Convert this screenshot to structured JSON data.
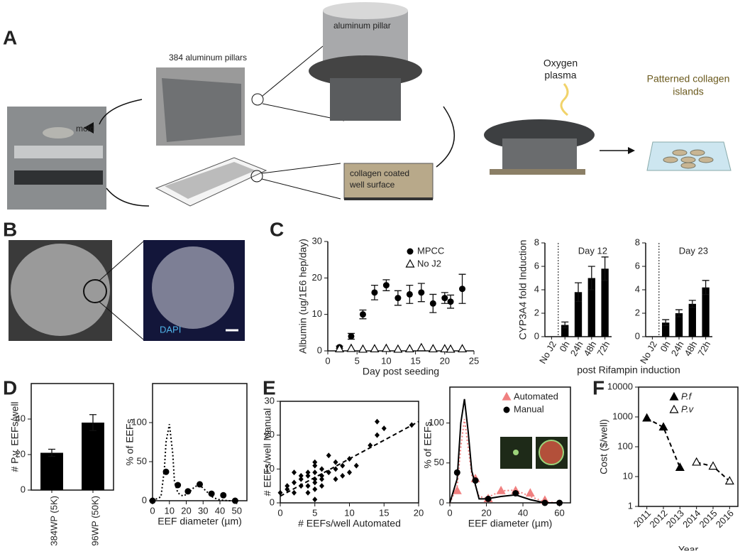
{
  "figure": {
    "panel_letters": [
      "A",
      "B",
      "C",
      "D",
      "E",
      "F"
    ],
    "a_labels": {
      "pillars": "384 aluminum pillars",
      "mold": "mold",
      "pillar": "aluminum pillar",
      "well": [
        "collagen coated",
        "well surface"
      ],
      "plasma": [
        "Oxygen",
        "plasma"
      ],
      "islands": [
        "Patterned collagen",
        "islands"
      ]
    },
    "b_labels": {
      "stain": "DAPI"
    }
  },
  "chart_data": [
    {
      "type": "scatter",
      "xlabel": "Day post seeding",
      "ylabel": "Albumin (ug/1E6 hep/day)",
      "xlim": [
        0,
        25
      ],
      "xticks": [
        0,
        5,
        10,
        15,
        20,
        25
      ],
      "ylim": [
        0,
        30
      ],
      "yticks": [
        0,
        10,
        20,
        30
      ],
      "legend": "top-right",
      "series": [
        {
          "name": "MPCC",
          "color": "#000000",
          "marker": "circle",
          "x": [
            2,
            4,
            6,
            8,
            10,
            12,
            14,
            16,
            18,
            20,
            21,
            23
          ],
          "values": [
            1,
            4,
            10,
            16,
            18,
            14.5,
            15.5,
            16,
            13,
            14.5,
            13.5,
            17
          ],
          "errors": [
            0.3,
            0.8,
            1.2,
            2,
            1.5,
            2,
            2.5,
            2.5,
            2.5,
            1.5,
            1.8,
            4
          ]
        },
        {
          "name": "No J2",
          "color": "#000000",
          "marker": "triangle-open",
          "x": [
            2,
            4,
            6,
            8,
            10,
            12,
            14,
            16,
            18,
            20,
            21,
            23
          ],
          "values": [
            0.5,
            0.6,
            0.4,
            0.5,
            0.6,
            0.4,
            0.5,
            0.8,
            0.5,
            0.5,
            0.4,
            0.5
          ]
        }
      ]
    },
    {
      "type": "bar",
      "ylabel": "CYP3A4 fold Induction",
      "annotation": "Day 12",
      "color": "#000000",
      "categories": [
        "No J2",
        "0h",
        "24h",
        "48h",
        "72h"
      ],
      "values": [
        0,
        1,
        3.8,
        5,
        5.8
      ],
      "errors": [
        0,
        0.25,
        0.8,
        1,
        1
      ],
      "ylim": [
        0,
        8
      ],
      "yticks": [
        0,
        2,
        4,
        6,
        8
      ]
    },
    {
      "type": "bar",
      "xlabel": "post Rifampin induction",
      "annotation": "Day 23",
      "color": "#000000",
      "categories": [
        "No J2",
        "0h",
        "24h",
        "48h",
        "72h"
      ],
      "values": [
        0,
        1.2,
        2,
        2.8,
        4.2
      ],
      "errors": [
        0,
        0.25,
        0.3,
        0.3,
        0.6
      ],
      "ylim": [
        0,
        8
      ],
      "yticks": [
        0,
        2,
        4,
        6,
        8
      ]
    },
    {
      "type": "bar",
      "ylabel": "# P.v. EEFs/well",
      "color": "#000000",
      "categories": [
        "384WP (5K)",
        "96WP (50K)"
      ],
      "values": [
        21,
        38
      ],
      "errors": [
        2,
        4.5
      ],
      "ylim": [
        0,
        60
      ],
      "yticks": [
        0,
        20,
        40
      ]
    },
    {
      "type": "line",
      "xlabel": "EEF diameter (µm)",
      "ylabel": "% of EEFs",
      "xlim": [
        0,
        56
      ],
      "xticks": [
        0,
        10,
        20,
        30,
        40,
        50
      ],
      "ylim": [
        0,
        150
      ],
      "yticks": [
        0,
        50,
        100
      ],
      "points": {
        "color": "#000000",
        "marker": "circle",
        "x": [
          0,
          8,
          15,
          21,
          28,
          35,
          42,
          49
        ],
        "values": [
          0,
          37,
          20,
          12,
          21,
          9,
          7,
          0
        ]
      },
      "fit": {
        "color": "#000000",
        "line_style": "dotted",
        "x": [
          0,
          5,
          7,
          8,
          10,
          12,
          13,
          15,
          18,
          21,
          25,
          28,
          32,
          36,
          40,
          45,
          50
        ],
        "values": [
          0,
          5,
          40,
          75,
          98,
          60,
          25,
          10,
          6,
          9,
          18,
          20,
          12,
          4,
          1,
          0,
          0
        ]
      }
    },
    {
      "type": "scatter",
      "xlabel": "# EEFs/well Automated",
      "ylabel": "# EEFs/well Manual",
      "xlim": [
        0,
        20
      ],
      "xticks": [
        0,
        5,
        10,
        15,
        20
      ],
      "ylim": [
        0,
        30
      ],
      "yticks": [
        0,
        10,
        20,
        30
      ],
      "color": "#000000",
      "marker": "diamond",
      "x": [
        0,
        1,
        1,
        2,
        2,
        2,
        3,
        3,
        3,
        4,
        4,
        4,
        4,
        5,
        5,
        5,
        5,
        5,
        5,
        5,
        6,
        6,
        6,
        6,
        7,
        7,
        8,
        8,
        9,
        10,
        10,
        11,
        13,
        14,
        14,
        15,
        19,
        8,
        9
      ],
      "values": [
        3,
        4,
        5,
        3,
        6,
        9,
        5,
        8,
        7,
        9,
        5,
        8,
        3,
        4,
        6,
        7,
        9,
        11,
        12,
        1,
        5,
        7,
        8,
        10,
        9,
        14,
        7,
        12,
        11,
        9,
        13,
        11,
        17,
        24,
        20,
        22,
        23,
        10,
        8
      ],
      "fit": {
        "color": "#000000",
        "line_style": "dashed",
        "x": [
          0,
          20
        ],
        "values": [
          2,
          24
        ]
      }
    },
    {
      "type": "line",
      "xlabel": "EEF diameter (µm)",
      "ylabel": "% of EEFs",
      "xlim": [
        0,
        66
      ],
      "xticks": [
        0,
        20,
        40,
        60
      ],
      "ylim": [
        0,
        145
      ],
      "yticks": [
        0,
        50,
        100
      ],
      "legend": "top-right",
      "series": [
        {
          "name": "Automated",
          "color": "#f08080",
          "marker": "triangle",
          "line_style": "dotted",
          "x": [
            4,
            14,
            21,
            28,
            36,
            44,
            52
          ],
          "values": [
            15,
            30,
            5,
            15,
            15,
            12,
            3
          ],
          "fit": {
            "x": [
              0,
              4,
              6,
              8,
              10,
              12,
              16,
              20,
              28,
              36,
              44,
              52,
              60
            ],
            "values": [
              0,
              20,
              70,
              105,
              70,
              35,
              8,
              6,
              15,
              16,
              8,
              1,
              0
            ]
          }
        },
        {
          "name": "Manual",
          "color": "#000000",
          "marker": "circle",
          "line_style": "solid",
          "x": [
            4,
            14,
            21,
            36,
            52,
            60
          ],
          "values": [
            38,
            28,
            5,
            12,
            0,
            0
          ],
          "fit": {
            "x": [
              0,
              4,
              6,
              8,
              10,
              12,
              16,
              20,
              28,
              36,
              44,
              52,
              60
            ],
            "values": [
              0,
              30,
              100,
              130,
              90,
              40,
              5,
              5,
              8,
              10,
              4,
              0,
              0
            ]
          }
        }
      ]
    },
    {
      "type": "line",
      "xlabel": "Year",
      "ylabel": "Cost ($/well)",
      "log_y": true,
      "ylim": [
        1,
        10000
      ],
      "yticks": [
        1,
        10,
        100,
        1000,
        10000
      ],
      "legend": "top-right",
      "categories": [
        "2011",
        "2012",
        "2013",
        "2014",
        "2015",
        "2016"
      ],
      "series": [
        {
          "name": "P.f",
          "color": "#000000",
          "marker": "triangle",
          "line_style": "dashed",
          "values": [
            900,
            450,
            20,
            null,
            null,
            null
          ]
        },
        {
          "name": "P.v",
          "color": "#000000",
          "marker": "triangle-open",
          "line_style": "dashed",
          "values": [
            null,
            null,
            null,
            30,
            22,
            7
          ]
        }
      ]
    }
  ]
}
